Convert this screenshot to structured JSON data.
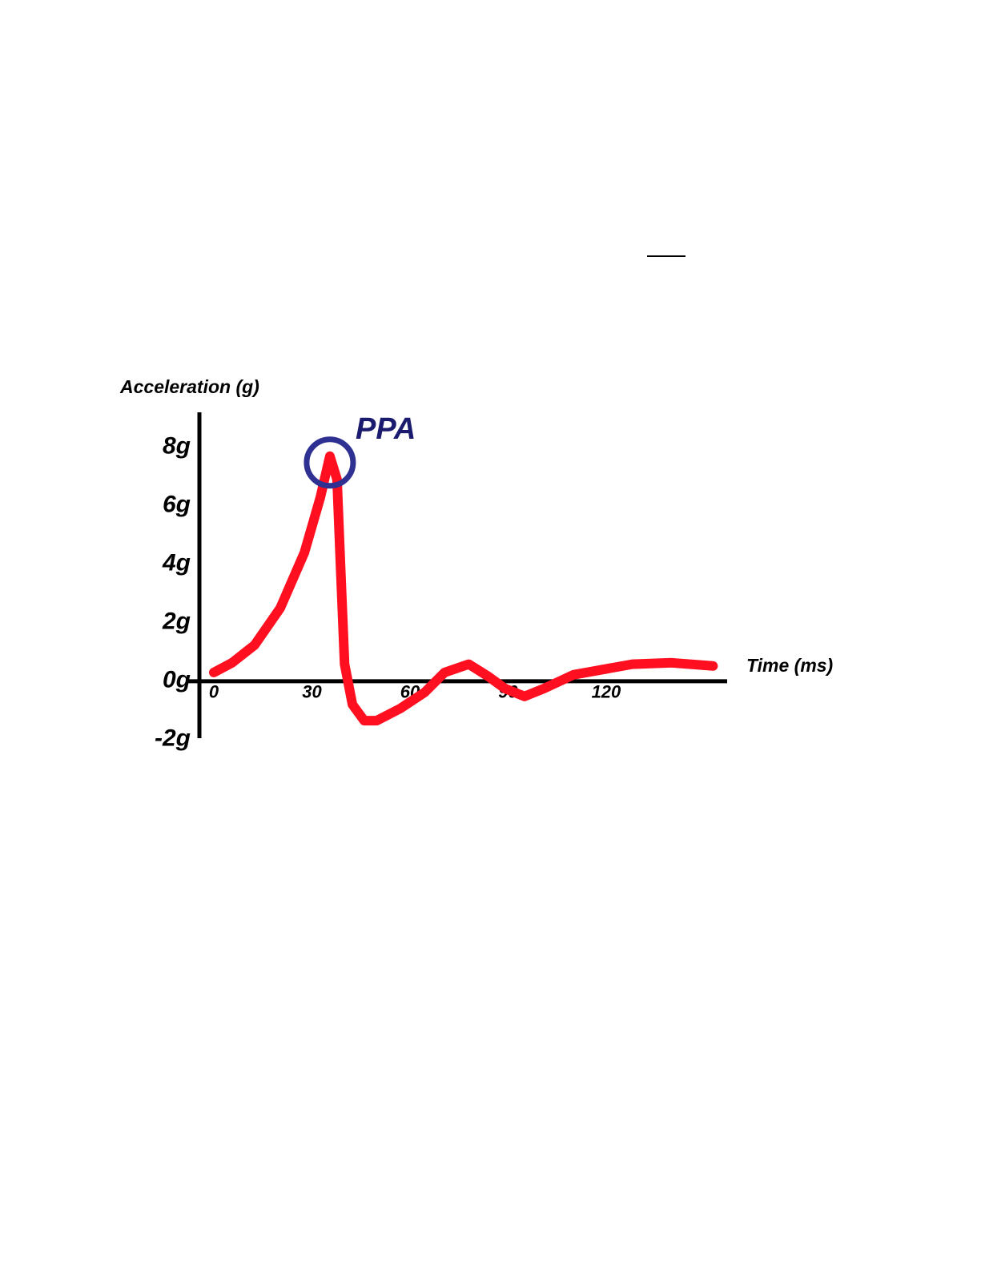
{
  "chart_data": {
    "type": "line",
    "y_label": "Acceleration (g)",
    "x_label": "Time (ms)",
    "annotation": "PPA",
    "x": [
      0,
      5.6,
      12.5,
      20.3,
      27.7,
      32.6,
      35.5,
      37.7,
      38.7,
      40,
      42.4,
      46,
      49.8,
      57.1,
      64.5,
      70.6,
      78,
      84,
      89,
      95,
      101,
      110,
      117,
      128,
      140,
      152.7
    ],
    "series": [
      {
        "color": "#ff0f1f",
        "values": [
          0.3,
          0.63,
          1.24,
          2.5,
          4.4,
          6.3,
          7.7,
          6.9,
          4.1,
          0.58,
          -0.8,
          -1.35,
          -1.35,
          -0.93,
          -0.38,
          0.3,
          0.58,
          0.16,
          -0.25,
          -0.52,
          -0.25,
          0.22,
          0.36,
          0.58,
          0.63,
          0.52
        ]
      }
    ],
    "xlim": [
      -4.4,
      157
    ],
    "ylim": [
      -1.95,
      9.2
    ],
    "xticks": [
      0,
      30,
      60,
      90,
      120
    ],
    "yticks": [
      {
        "value": 8,
        "label": "8g"
      },
      {
        "value": 6,
        "label": "6g"
      },
      {
        "value": 4,
        "label": "4g"
      },
      {
        "value": 2,
        "label": "2g"
      },
      {
        "value": 0,
        "label": "0g"
      },
      {
        "value": -2,
        "label": "-2g"
      }
    ],
    "grid": false
  }
}
